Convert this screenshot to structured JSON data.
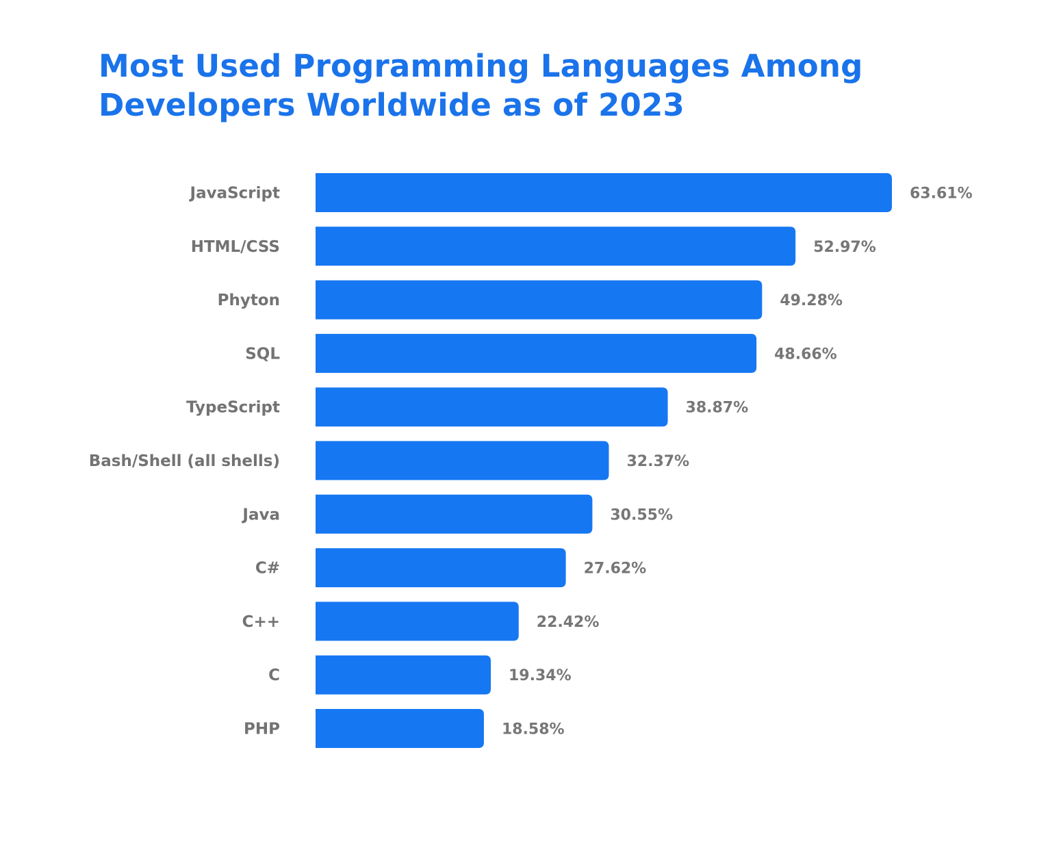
{
  "chart_data": {
    "type": "bar",
    "orientation": "horizontal",
    "title": "Most Used Programming Languages Among Developers Worldwide as of 2023",
    "categories": [
      "JavaScript",
      "HTML/CSS",
      "Phyton",
      "SQL",
      "TypeScript",
      "Bash/Shell (all shells)",
      "Java",
      "C#",
      "C++",
      "C",
      "PHP"
    ],
    "values": [
      63.61,
      52.97,
      49.28,
      48.66,
      38.87,
      32.37,
      30.55,
      27.62,
      22.42,
      19.34,
      18.58
    ],
    "value_labels": [
      "63.61%",
      "52.97%",
      "49.28%",
      "48.66%",
      "38.87%",
      "32.37%",
      "30.55%",
      "27.62%",
      "22.42%",
      "19.34%",
      "18.58%"
    ],
    "xlabel": "",
    "ylabel": "",
    "grid": false,
    "bar_color": "#1677f2",
    "title_color": "#1a73ea"
  }
}
